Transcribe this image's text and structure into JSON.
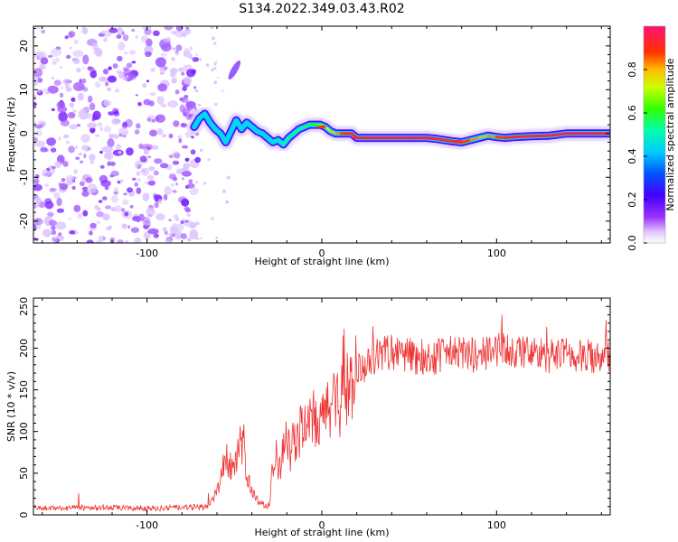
{
  "figure": {
    "title": "S134.2022.349.03.43.R02"
  },
  "chart_data": [
    {
      "type": "heatmap",
      "title": "",
      "xlabel": "Height of straight line (km)",
      "ylabel": "Frequency (Hz)",
      "xlim": [
        -165,
        165
      ],
      "ylim": [
        -25,
        24.5
      ],
      "x_ticks": [
        -100,
        0,
        100
      ],
      "y_ticks": [
        -20,
        -10,
        0,
        10,
        20
      ],
      "colorbar": {
        "label": "Normalized spectral amplitude",
        "range": [
          0.0,
          1.0
        ],
        "ticks": [
          0.0,
          0.2,
          0.4,
          0.6,
          0.8
        ],
        "colormap": "rainbow (white - purple - blue - cyan - green - yellow - red - pink)"
      },
      "noise_region": {
        "x_range": [
          -165,
          -73
        ],
        "y_range": [
          -25,
          24.5
        ],
        "amplitude": 0.15
      },
      "spur": {
        "x": [
          -52,
          -48
        ],
        "y": [
          12,
          17
        ],
        "amplitude": 0.15
      },
      "ridge": {
        "x": [
          -73,
          -70,
          -67,
          -64,
          -61,
          -58,
          -55,
          -52,
          -49,
          -46,
          -43,
          -40,
          -37,
          -34,
          -31,
          -28,
          -25,
          -22,
          -19,
          -16,
          -13,
          -10,
          -7,
          -4,
          -1,
          2,
          5,
          8,
          11,
          14,
          17,
          20,
          30,
          40,
          50,
          60,
          65,
          70,
          75,
          80,
          85,
          90,
          95,
          100,
          105,
          110,
          120,
          130,
          140,
          150,
          160,
          165
        ],
        "frequency": [
          1.5,
          3.5,
          4.5,
          2.5,
          1.0,
          0.0,
          -2.0,
          0.5,
          3.0,
          1.0,
          2.5,
          1.5,
          0.5,
          0.0,
          -1.0,
          -2.0,
          -1.5,
          -2.5,
          -1.0,
          0.0,
          1.0,
          1.5,
          2.0,
          2.0,
          2.0,
          1.5,
          0.5,
          0.0,
          0.0,
          0.0,
          0.0,
          -1.0,
          -1.0,
          -1.0,
          -1.0,
          -1.0,
          -1.2,
          -1.5,
          -1.8,
          -2.0,
          -1.5,
          -1.0,
          -0.5,
          -0.8,
          -1.0,
          -0.8,
          -0.6,
          -0.5,
          0.0,
          0.0,
          0.0,
          0.0
        ],
        "amplitude": [
          0.45,
          0.45,
          0.45,
          0.45,
          0.45,
          0.45,
          0.45,
          0.45,
          0.45,
          0.45,
          0.45,
          0.45,
          0.45,
          0.45,
          0.45,
          0.45,
          0.5,
          0.5,
          0.55,
          0.55,
          0.55,
          0.55,
          0.6,
          0.6,
          0.65,
          0.7,
          0.75,
          0.8,
          0.85,
          0.9,
          0.92,
          0.95,
          0.95,
          0.95,
          0.95,
          0.95,
          0.95,
          0.92,
          0.9,
          0.9,
          0.85,
          0.8,
          0.8,
          0.85,
          0.9,
          0.92,
          0.93,
          0.95,
          0.95,
          0.95,
          0.95,
          0.95
        ]
      }
    },
    {
      "type": "line",
      "title": "",
      "xlabel": "Height of straight line (km)",
      "ylabel": "SNR (10 * v/v)",
      "xlim": [
        -165,
        165
      ],
      "ylim": [
        0,
        260
      ],
      "x_ticks": [
        -100,
        0,
        100
      ],
      "y_ticks": [
        0,
        50,
        100,
        150,
        200,
        250
      ],
      "series": [
        {
          "name": "SNR",
          "color": "#ee3333",
          "x": [
            -165,
            -150,
            -130,
            -110,
            -90,
            -75,
            -65,
            -62,
            -58,
            -55,
            -52,
            -50,
            -47,
            -45,
            -42,
            -40,
            -38,
            -35,
            -32,
            -30,
            -29,
            -28,
            -26,
            -24,
            -22,
            -20,
            -18,
            -15,
            -12,
            -10,
            -8,
            -5,
            -2,
            0,
            2,
            5,
            8,
            10,
            12,
            13,
            14,
            16,
            18,
            20,
            22,
            25,
            28,
            30,
            35,
            40,
            50,
            60,
            70,
            80,
            90,
            100,
            105,
            110,
            120,
            130,
            140,
            150,
            160,
            165
          ],
          "y": [
            8,
            8,
            9,
            8,
            8,
            9,
            10,
            20,
            40,
            70,
            60,
            50,
            80,
            90,
            40,
            30,
            20,
            15,
            10,
            12,
            35,
            60,
            70,
            55,
            85,
            100,
            75,
            95,
            100,
            110,
            100,
            115,
            105,
            110,
            125,
            135,
            150,
            120,
            170,
            185,
            150,
            160,
            165,
            170,
            175,
            180,
            178,
            190,
            195,
            195,
            192,
            188,
            192,
            195,
            190,
            198,
            200,
            195,
            195,
            190,
            192,
            188,
            195,
            190
          ]
        }
      ]
    }
  ]
}
